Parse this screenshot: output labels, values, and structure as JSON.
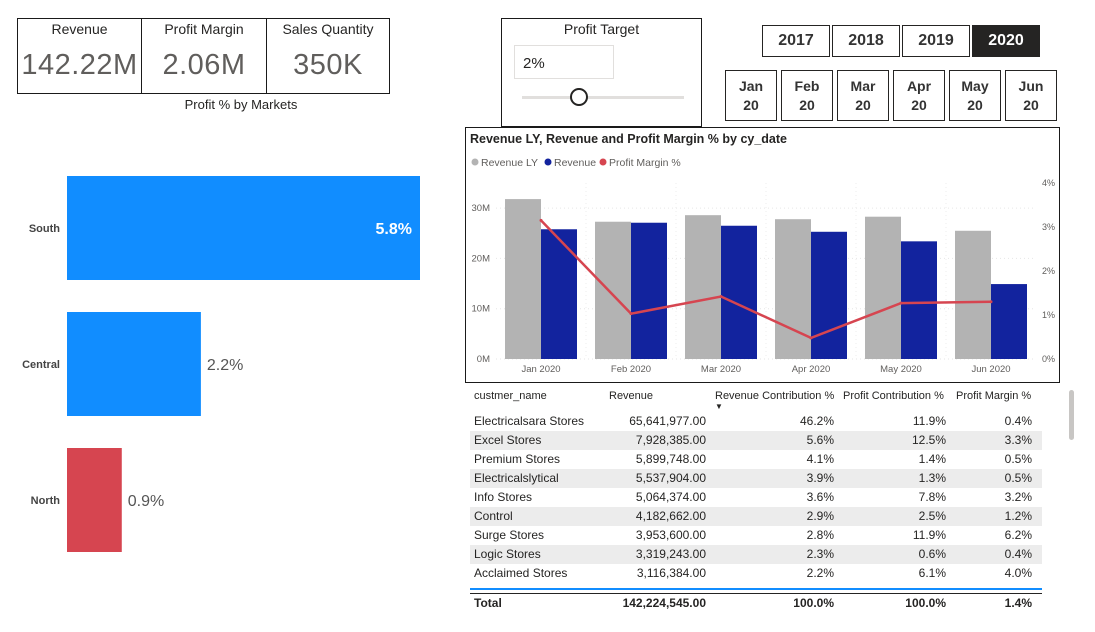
{
  "kpis": {
    "revenue": {
      "label": "Revenue",
      "value": "142.22M"
    },
    "profit_margin": {
      "label": "Profit Margin",
      "value": "2.06M"
    },
    "sales_quantity": {
      "label": "Sales Quantity",
      "value": "350K"
    }
  },
  "markets_chart": {
    "title": "Profit % by Markets",
    "chart_data": {
      "type": "bar",
      "orientation": "horizontal",
      "categories": [
        "South",
        "Central",
        "North"
      ],
      "values": [
        5.8,
        2.2,
        0.9
      ],
      "labels": [
        "5.8%",
        "2.2%",
        "0.9%"
      ],
      "colors": [
        "#118dff",
        "#118dff",
        "#d64550"
      ]
    }
  },
  "profit_target": {
    "label": "Profit Target",
    "value": "2%",
    "slider_fraction": 0.35
  },
  "years": [
    {
      "label": "2017",
      "selected": false
    },
    {
      "label": "2018",
      "selected": false
    },
    {
      "label": "2019",
      "selected": false
    },
    {
      "label": "2020",
      "selected": true
    }
  ],
  "months": [
    {
      "l1": "Jan",
      "l2": "20"
    },
    {
      "l1": "Feb",
      "l2": "20"
    },
    {
      "l1": "Mar",
      "l2": "20"
    },
    {
      "l1": "Apr",
      "l2": "20"
    },
    {
      "l1": "May",
      "l2": "20"
    },
    {
      "l1": "Jun",
      "l2": "20"
    }
  ],
  "combo_chart": {
    "title": "Revenue LY, Revenue and Profit Margin % by cy_date",
    "legend": [
      {
        "name": "Revenue LY",
        "color": "#b3b3b3"
      },
      {
        "name": "Revenue",
        "color": "#12239e"
      },
      {
        "name": "Profit Margin %",
        "color": "#d64550"
      }
    ],
    "y_ticks": [
      "0M",
      "10M",
      "20M",
      "30M"
    ],
    "y2_ticks": [
      "0%",
      "1%",
      "2%",
      "3%",
      "4%"
    ],
    "chart_data": {
      "type": "bar",
      "categories": [
        "Jan 2020",
        "Feb 2020",
        "Mar 2020",
        "Apr 2020",
        "May 2020",
        "Jun 2020"
      ],
      "ylim": [
        0,
        35
      ],
      "y2lim": [
        0,
        4
      ],
      "series": [
        {
          "name": "Revenue LY",
          "type": "bar",
          "axis": "left",
          "values": [
            31.8,
            27.3,
            28.6,
            27.8,
            28.3,
            25.5
          ]
        },
        {
          "name": "Revenue",
          "type": "bar",
          "axis": "left",
          "values": [
            25.8,
            27.1,
            26.5,
            25.3,
            23.4,
            14.9
          ]
        },
        {
          "name": "Profit Margin %",
          "type": "line",
          "axis": "right",
          "values": [
            3.15,
            1.03,
            1.42,
            0.48,
            1.27,
            1.3
          ]
        }
      ]
    }
  },
  "table": {
    "columns": [
      "custmer_name",
      "Revenue",
      "Revenue Contribution %",
      "Profit Contribution %",
      "Profit Margin %"
    ],
    "sort_indicator": "▼",
    "rows": [
      [
        "Electricalsara Stores",
        "65,641,977.00",
        "46.2%",
        "11.9%",
        "0.4%"
      ],
      [
        "Excel Stores",
        "7,928,385.00",
        "5.6%",
        "12.5%",
        "3.3%"
      ],
      [
        "Premium Stores",
        "5,899,748.00",
        "4.1%",
        "1.4%",
        "0.5%"
      ],
      [
        "Electricalslytical",
        "5,537,904.00",
        "3.9%",
        "1.3%",
        "0.5%"
      ],
      [
        "Info Stores",
        "5,064,374.00",
        "3.6%",
        "7.8%",
        "3.2%"
      ],
      [
        "Control",
        "4,182,662.00",
        "2.9%",
        "2.5%",
        "1.2%"
      ],
      [
        "Surge Stores",
        "3,953,600.00",
        "2.8%",
        "11.9%",
        "6.2%"
      ],
      [
        "Logic Stores",
        "3,319,243.00",
        "2.3%",
        "0.6%",
        "0.4%"
      ],
      [
        "Acclaimed Stores",
        "3,116,384.00",
        "2.2%",
        "6.1%",
        "4.0%"
      ]
    ],
    "total": [
      "Total",
      "142,224,545.00",
      "100.0%",
      "100.0%",
      "1.4%"
    ]
  }
}
